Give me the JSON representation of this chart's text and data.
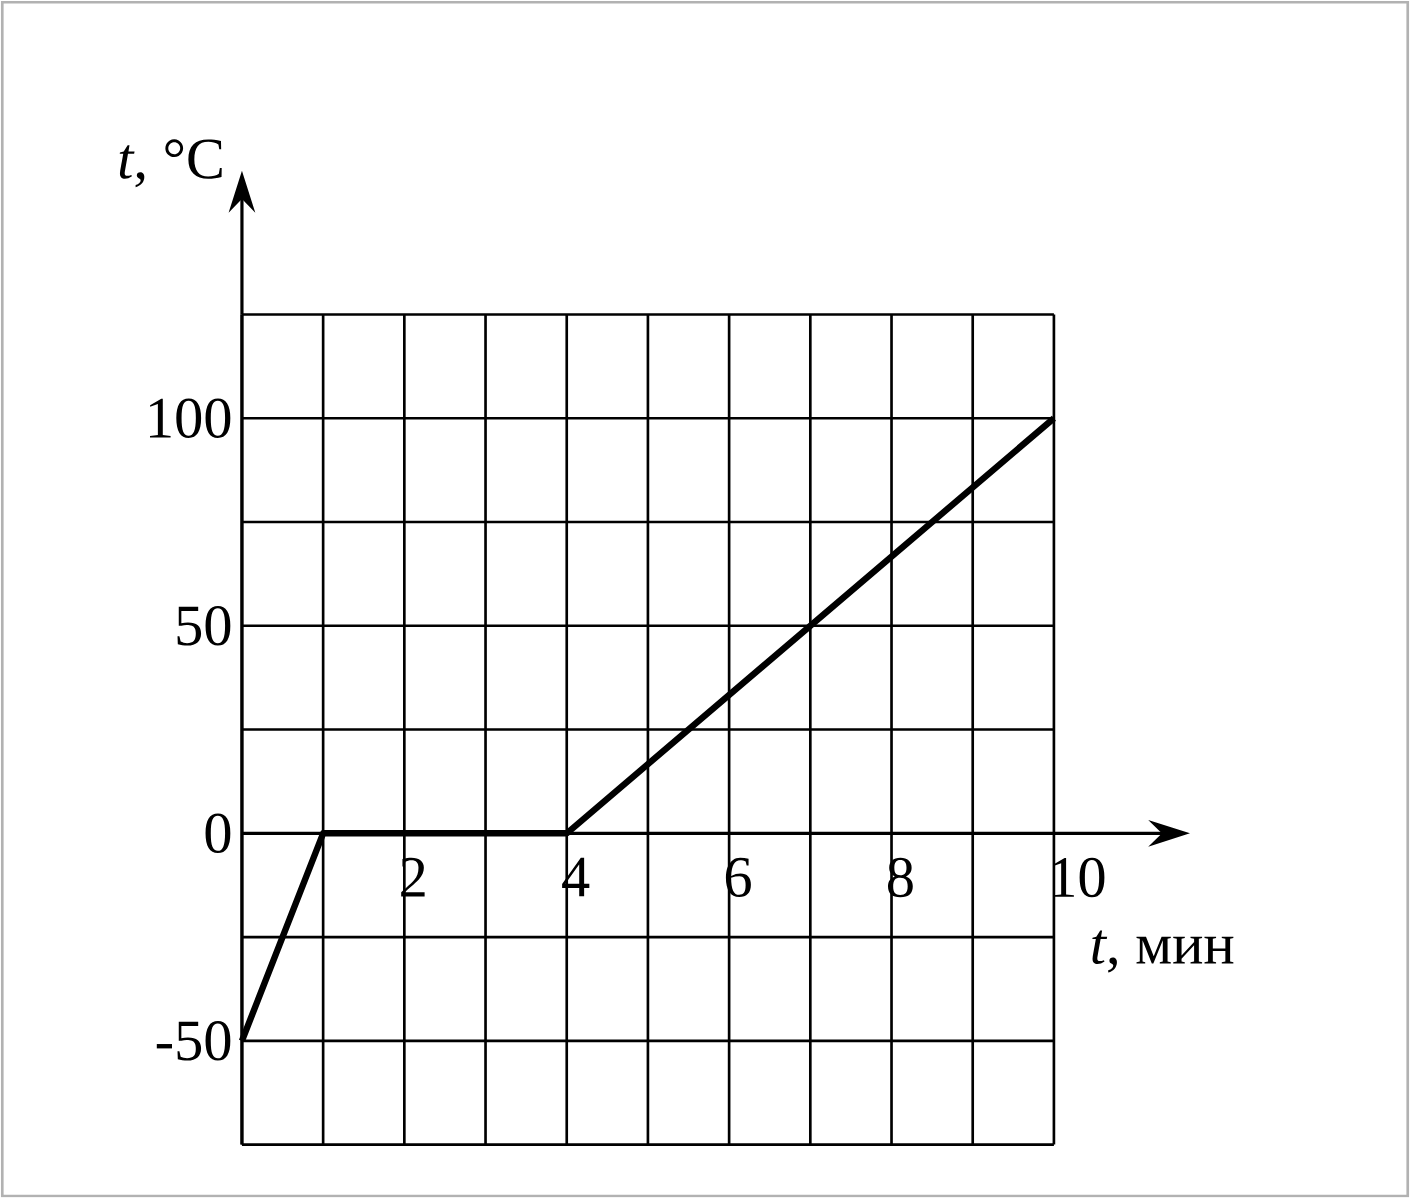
{
  "chart_data": {
    "type": "line",
    "xlabel": "*t*, мин",
    "ylabel": "*t*, °C",
    "x": [
      0,
      1,
      4,
      10
    ],
    "series": [
      {
        "color": "#000000",
        "values": [
          -50,
          0,
          0,
          100
        ]
      }
    ],
    "xlim": [
      0,
      10
    ],
    "ylim": [
      -75,
      125
    ],
    "xticks": [
      {
        "value": 0,
        "label": null
      },
      {
        "value": 1,
        "label": null
      },
      2,
      {
        "value": 3,
        "label": null
      },
      4,
      {
        "value": 5,
        "label": null
      },
      6,
      {
        "value": 7,
        "label": null
      },
      8,
      {
        "value": 9,
        "label": null
      },
      10
    ],
    "yticks": [
      {
        "value": -75,
        "label": null
      },
      -50,
      {
        "value": -25,
        "label": null
      },
      0,
      {
        "value": 25,
        "label": null
      },
      50,
      {
        "value": 75,
        "label": null
      },
      100,
      {
        "value": 125,
        "label": null
      }
    ],
    "grid": true,
    "marker": "none",
    "line_style": "solid"
  }
}
